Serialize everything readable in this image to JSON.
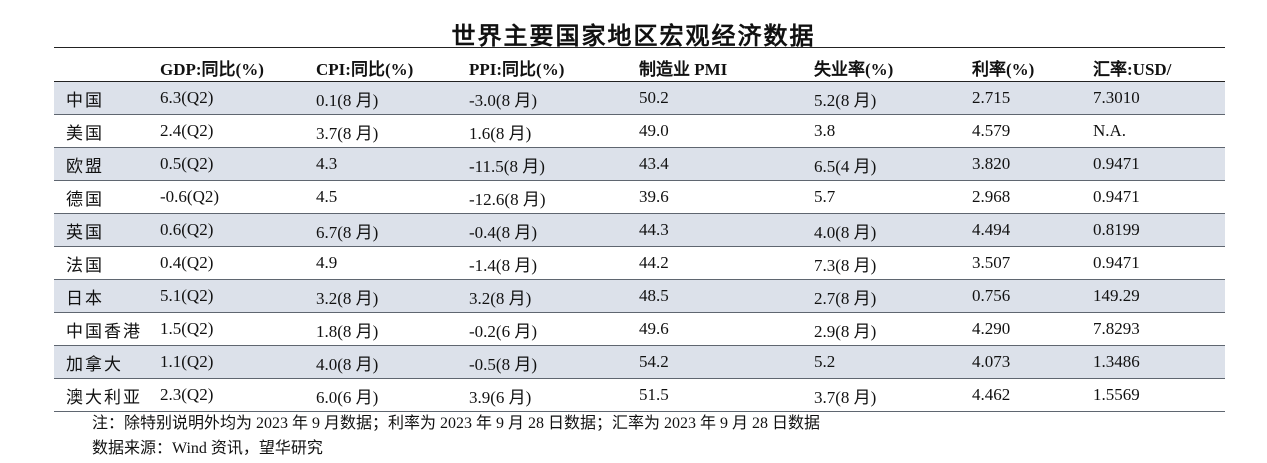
{
  "title": "世界主要国家地区宏观经济数据",
  "table": {
    "headers": [
      "",
      "GDP:同比(%)",
      "CPI:同比(%)",
      "PPI:同比(%)",
      "制造业 PMI",
      "失业率(%)",
      "利率(%)",
      "汇率:USD/"
    ],
    "rows": [
      [
        "中国",
        "6.3(Q2)",
        "0.1(8 月)",
        "-3.0(8 月)",
        "50.2",
        "5.2(8 月)",
        "2.715",
        "7.3010"
      ],
      [
        "美国",
        "2.4(Q2)",
        "3.7(8 月)",
        "1.6(8 月)",
        "49.0",
        "3.8",
        "4.579",
        "N.A."
      ],
      [
        "欧盟",
        "0.5(Q2)",
        "4.3",
        "-11.5(8 月)",
        "43.4",
        "6.5(4 月)",
        "3.820",
        "0.9471"
      ],
      [
        "德国",
        "-0.6(Q2)",
        "4.5",
        "-12.6(8 月)",
        "39.6",
        "5.7",
        "2.968",
        "0.9471"
      ],
      [
        "英国",
        "0.6(Q2)",
        "6.7(8 月)",
        "-0.4(8 月)",
        "44.3",
        "4.0(8 月)",
        "4.494",
        "0.8199"
      ],
      [
        "法国",
        "0.4(Q2)",
        "4.9",
        "-1.4(8 月)",
        "44.2",
        "7.3(8 月)",
        "3.507",
        "0.9471"
      ],
      [
        "日本",
        "5.1(Q2)",
        "3.2(8 月)",
        "3.2(8 月)",
        "48.5",
        "2.7(8 月)",
        "0.756",
        "149.29"
      ],
      [
        "中国香港",
        "1.5(Q2)",
        "1.8(8 月)",
        "-0.2(6 月)",
        "49.6",
        "2.9(8 月)",
        "4.290",
        "7.8293"
      ],
      [
        "加拿大",
        "1.1(Q2)",
        "4.0(8 月)",
        "-0.5(8 月)",
        "54.2",
        "5.2",
        "4.073",
        "1.3486"
      ],
      [
        "澳大利亚",
        "2.3(Q2)",
        "6.0(6 月)",
        "3.9(6 月)",
        "51.5",
        "3.7(8 月)",
        "4.462",
        "1.5569"
      ]
    ]
  },
  "notes": {
    "note": "注：除特别说明外均为 2023 年 9 月数据；利率为 2023 年 9 月 28 日数据；汇率为 2023 年 9 月 28 日数据",
    "source": "数据来源：Wind 资讯，望华研究"
  },
  "colors": {
    "shaded_row": "#dce1ea",
    "rule": "#222222"
  }
}
